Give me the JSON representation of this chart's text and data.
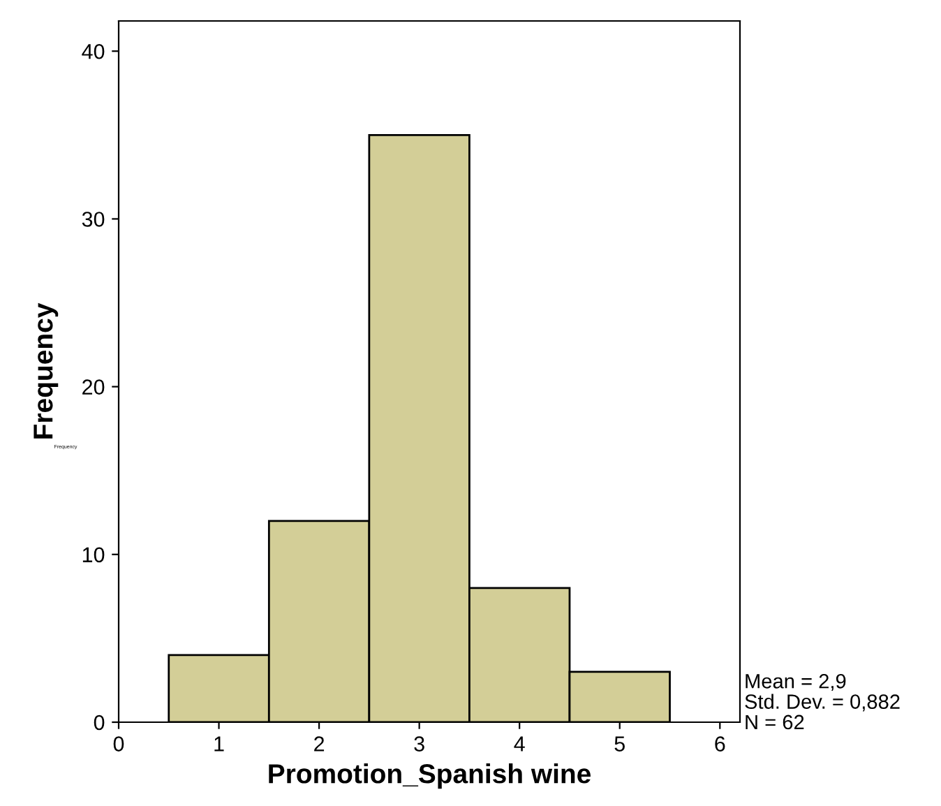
{
  "chart_data": {
    "type": "histogram",
    "xlabel": "Promotion_Spanish wine",
    "ylabel": "Frequency",
    "bins": [
      0.5,
      1.5,
      2.5,
      3.5,
      4.5,
      5.5
    ],
    "values": [
      4,
      12,
      35,
      8,
      3
    ],
    "color": "#d3ce97",
    "xlim": [
      0,
      6.2
    ],
    "xticks": [
      0,
      1,
      2,
      3,
      4,
      5,
      6
    ],
    "ylim": [
      0,
      41.8
    ],
    "yticks": [
      0,
      10,
      20,
      30,
      40
    ],
    "grid": false,
    "annotations": [
      "Mean = 2,9\nStd. Dev. = 0,882\nN = 62",
      "Frequency"
    ]
  }
}
